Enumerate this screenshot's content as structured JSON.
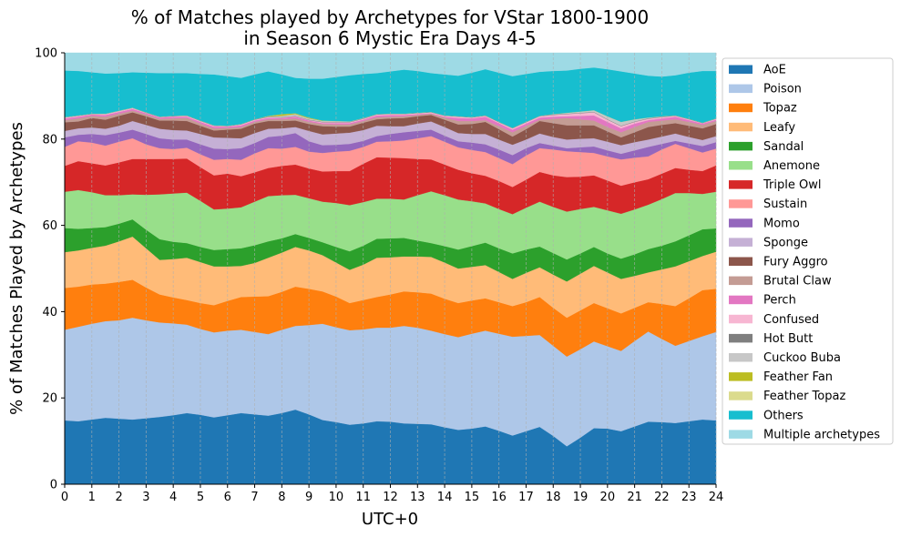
{
  "chart_data": {
    "type": "area",
    "stacked": true,
    "title_line1": "% of Matches played by Archetypes for VStar 1800-1900",
    "title_line2": "in Season 6 Mystic Era Days 4-5",
    "xlabel": "UTC+0",
    "ylabel": "% of Matches Played by Archetypes",
    "xlim": [
      0,
      24
    ],
    "ylim": [
      0,
      100
    ],
    "xticks": [
      0,
      1,
      2,
      3,
      4,
      5,
      6,
      7,
      8,
      9,
      10,
      11,
      12,
      13,
      14,
      15,
      16,
      17,
      18,
      19,
      20,
      21,
      22,
      23,
      24
    ],
    "yticks": [
      0,
      20,
      40,
      60,
      80,
      100
    ],
    "grid": "vertical-dashed",
    "legend_position": "right",
    "x": [
      0,
      0.5,
      1,
      1.5,
      2,
      2.5,
      3,
      3.5,
      4,
      4.5,
      5,
      5.5,
      6,
      6.5,
      7,
      7.5,
      8,
      8.5,
      9,
      9.5,
      10,
      10.5,
      11,
      11.5,
      12,
      12.5,
      13,
      13.5,
      14,
      14.5,
      15,
      15.5,
      16,
      16.5,
      17,
      17.5,
      18,
      18.5,
      19,
      19.5,
      20,
      20.5,
      21,
      21.5,
      22,
      22.5,
      23,
      23.5,
      24
    ],
    "cumulative_tops": [
      {
        "name": "AoE",
        "color": "#1f77b4",
        "values": [
          14.8,
          14.6,
          15.0,
          15.4,
          15.2,
          15.0,
          15.3,
          15.6,
          16.0,
          16.5,
          16.1,
          15.5,
          16.0,
          16.5,
          16.2,
          15.9,
          16.5,
          17.3,
          16.2,
          14.9,
          14.4,
          13.8,
          14.1,
          14.6,
          14.5,
          14.1,
          14.0,
          13.9,
          13.2,
          12.6,
          12.9,
          13.4,
          12.4,
          11.3,
          12.3,
          13.3,
          11.2,
          8.8,
          10.8,
          13.0,
          12.9,
          12.3,
          13.4,
          14.5,
          14.4,
          14.2,
          14.6,
          15.0,
          14.8
        ]
      },
      {
        "name": "Poison",
        "color": "#aec7e8",
        "values": [
          35.8,
          36.5,
          37.2,
          37.8,
          38.0,
          38.6,
          38.0,
          37.5,
          37.3,
          37.0,
          36.0,
          35.2,
          35.6,
          35.8,
          35.3,
          34.8,
          35.8,
          36.7,
          36.9,
          37.2,
          36.4,
          35.7,
          35.9,
          36.3,
          36.3,
          36.7,
          36.3,
          35.6,
          34.8,
          34.1,
          34.9,
          35.6,
          34.9,
          34.2,
          34.4,
          34.6,
          32.1,
          29.6,
          31.3,
          33.1,
          32.0,
          30.9,
          33.2,
          35.4,
          33.7,
          32.1,
          33.2,
          34.3,
          35.3
        ]
      },
      {
        "name": "Topaz",
        "color": "#ff7f0e",
        "values": [
          45.5,
          45.8,
          46.3,
          46.5,
          46.9,
          47.4,
          45.6,
          44.0,
          43.3,
          42.7,
          42.0,
          41.5,
          42.5,
          43.4,
          43.5,
          43.6,
          44.6,
          45.8,
          45.3,
          44.7,
          43.5,
          42.0,
          42.7,
          43.4,
          44.0,
          44.7,
          44.5,
          44.2,
          43.0,
          42.0,
          42.6,
          43.1,
          42.2,
          41.3,
          42.2,
          43.4,
          40.9,
          38.6,
          40.3,
          42.0,
          40.8,
          39.6,
          40.9,
          42.2,
          41.8,
          41.3,
          43.1,
          45.0,
          45.3
        ]
      },
      {
        "name": "Leafy",
        "color": "#ffbb78",
        "values": [
          53.8,
          54.2,
          54.8,
          55.3,
          56.3,
          57.4,
          54.7,
          52.0,
          52.2,
          52.5,
          51.5,
          50.5,
          50.5,
          50.6,
          51.3,
          52.5,
          53.7,
          55.0,
          54.2,
          53.1,
          51.4,
          49.7,
          50.9,
          52.5,
          52.6,
          52.8,
          52.8,
          52.7,
          51.4,
          50.0,
          50.4,
          50.8,
          49.2,
          47.6,
          49.0,
          50.3,
          48.6,
          47.0,
          48.8,
          50.6,
          49.1,
          47.6,
          48.3,
          49.1,
          49.8,
          50.5,
          51.7,
          52.9,
          53.9
        ]
      },
      {
        "name": "Sandal",
        "color": "#2ca02c",
        "values": [
          59.4,
          59.2,
          59.4,
          59.6,
          60.4,
          61.4,
          59.0,
          56.8,
          56.2,
          55.9,
          55.0,
          54.3,
          54.5,
          54.7,
          55.4,
          56.3,
          57.0,
          58.0,
          57.1,
          56.1,
          55.0,
          54.0,
          55.3,
          56.9,
          57.0,
          57.1,
          56.5,
          55.9,
          55.2,
          54.4,
          55.2,
          56.0,
          54.7,
          53.5,
          54.4,
          55.1,
          53.6,
          52.1,
          53.5,
          55.0,
          53.5,
          52.3,
          53.3,
          54.5,
          55.3,
          56.3,
          57.7,
          59.1,
          59.3
        ]
      },
      {
        "name": "Anemone",
        "color": "#98df8a",
        "values": [
          67.8,
          68.2,
          67.7,
          67.0,
          67.0,
          67.2,
          67.1,
          67.2,
          67.4,
          67.6,
          65.7,
          63.7,
          63.9,
          64.2,
          65.5,
          66.8,
          67.0,
          67.1,
          66.3,
          65.5,
          65.2,
          64.7,
          65.4,
          66.2,
          66.2,
          66.0,
          67.0,
          67.9,
          67.0,
          66.0,
          65.6,
          65.1,
          63.8,
          62.6,
          64.1,
          65.5,
          64.3,
          63.2,
          63.8,
          64.3,
          63.5,
          62.7,
          63.7,
          64.8,
          66.1,
          67.5,
          67.5,
          67.3,
          67.8
        ]
      },
      {
        "name": "Triple Owl",
        "color": "#d62728",
        "values": [
          73.8,
          74.9,
          74.4,
          73.9,
          74.6,
          75.4,
          75.4,
          75.4,
          75.4,
          75.5,
          73.5,
          71.6,
          72.0,
          71.4,
          72.3,
          73.3,
          73.8,
          74.1,
          73.2,
          72.5,
          72.6,
          72.6,
          74.3,
          75.8,
          75.7,
          75.6,
          75.4,
          75.3,
          74.1,
          72.9,
          72.1,
          71.5,
          70.3,
          68.9,
          70.6,
          72.4,
          71.6,
          71.2,
          71.3,
          71.6,
          70.4,
          69.2,
          70.0,
          70.7,
          72.0,
          73.3,
          72.9,
          72.6,
          73.9
        ]
      },
      {
        "name": "Sustain",
        "color": "#ff9896",
        "values": [
          78.2,
          79.5,
          79.2,
          78.5,
          79.4,
          80.2,
          78.8,
          77.9,
          77.7,
          78.0,
          76.5,
          75.2,
          75.4,
          75.2,
          76.7,
          77.9,
          77.8,
          78.2,
          77.1,
          76.8,
          77.1,
          77.3,
          78.2,
          79.4,
          79.5,
          79.7,
          80.2,
          80.7,
          79.4,
          78.1,
          77.5,
          77.0,
          75.6,
          74.2,
          76.2,
          77.9,
          77.6,
          77.2,
          77.0,
          76.8,
          76.0,
          75.3,
          75.7,
          76.0,
          77.6,
          78.9,
          77.9,
          76.9,
          77.8
        ]
      },
      {
        "name": "Momo",
        "color": "#9467bd",
        "values": [
          80.4,
          81.0,
          81.2,
          80.9,
          81.5,
          82.2,
          81.2,
          80.2,
          79.9,
          79.9,
          78.8,
          77.8,
          77.7,
          77.9,
          79.1,
          80.5,
          80.8,
          81.4,
          79.5,
          78.6,
          78.7,
          78.9,
          79.6,
          80.7,
          81.2,
          81.6,
          81.9,
          82.2,
          80.8,
          79.5,
          79.2,
          78.8,
          77.6,
          76.3,
          77.9,
          79.1,
          78.5,
          77.9,
          78.1,
          78.3,
          77.4,
          76.6,
          77.4,
          78.2,
          78.9,
          79.6,
          79.0,
          78.4,
          79.3
        ]
      },
      {
        "name": "Sponge",
        "color": "#c5b0d5",
        "values": [
          81.9,
          82.5,
          82.7,
          82.4,
          83.1,
          84.2,
          83.3,
          82.4,
          82.1,
          82.0,
          81.2,
          80.4,
          80.3,
          80.2,
          81.4,
          82.4,
          82.5,
          82.8,
          81.9,
          81.1,
          81.3,
          81.5,
          82.1,
          83.1,
          83.0,
          83.0,
          83.6,
          84.1,
          82.8,
          81.4,
          81.2,
          81.2,
          79.9,
          78.7,
          79.9,
          81.3,
          80.5,
          79.9,
          80.1,
          80.2,
          79.4,
          78.6,
          79.3,
          79.9,
          80.6,
          81.3,
          80.5,
          79.8,
          80.7
        ]
      },
      {
        "name": "Fury Aggro",
        "color": "#8c564b",
        "values": [
          83.9,
          84.1,
          84.9,
          84.5,
          85.4,
          86.2,
          85.3,
          84.3,
          84.3,
          84.2,
          83.1,
          82.0,
          82.2,
          82.4,
          83.6,
          84.2,
          84.2,
          84.3,
          83.5,
          83.0,
          82.9,
          82.9,
          83.8,
          84.6,
          84.8,
          84.9,
          85.3,
          85.6,
          84.5,
          83.4,
          83.5,
          84.0,
          82.3,
          80.6,
          82.3,
          84.2,
          83.7,
          83.2,
          83.2,
          83.2,
          81.8,
          80.4,
          81.6,
          82.8,
          83.3,
          83.7,
          83.1,
          82.5,
          83.5
        ]
      },
      {
        "name": "Brutal Claw",
        "color": "#c49c94",
        "values": [
          84.4,
          84.8,
          85.4,
          85.2,
          85.9,
          86.6,
          85.7,
          84.7,
          84.8,
          84.9,
          83.6,
          82.5,
          82.6,
          82.8,
          84.0,
          84.6,
          84.6,
          84.8,
          84.0,
          83.5,
          83.4,
          83.4,
          84.2,
          85.1,
          85.2,
          85.3,
          85.6,
          85.9,
          85.0,
          84.2,
          84.2,
          84.4,
          83.0,
          81.6,
          83.1,
          84.5,
          84.7,
          84.9,
          84.6,
          84.3,
          82.8,
          81.6,
          82.8,
          84.0,
          84.3,
          84.6,
          84.0,
          83.3,
          84.2
        ]
      },
      {
        "name": "Perch",
        "color": "#e377c2",
        "values": [
          84.8,
          85.2,
          85.7,
          85.6,
          86.3,
          87.0,
          86.0,
          85.0,
          85.2,
          85.2,
          84.0,
          82.9,
          82.9,
          83.2,
          84.3,
          84.9,
          84.9,
          85.2,
          84.3,
          83.7,
          83.7,
          83.7,
          84.5,
          85.5,
          85.6,
          85.6,
          85.8,
          86.0,
          85.2,
          84.9,
          84.8,
          85.2,
          83.7,
          82.2,
          83.6,
          85.0,
          85.2,
          85.3,
          85.4,
          85.5,
          84.0,
          82.5,
          83.6,
          84.4,
          84.8,
          85.2,
          84.4,
          83.6,
          84.5
        ]
      },
      {
        "name": "Confused",
        "color": "#f7b6d2",
        "values": [
          85.0,
          85.4,
          85.8,
          85.8,
          86.5,
          87.2,
          86.1,
          85.1,
          85.3,
          85.4,
          84.2,
          83.1,
          83.0,
          83.4,
          84.5,
          85.1,
          85.0,
          85.3,
          84.4,
          83.9,
          83.9,
          83.9,
          84.7,
          85.7,
          85.8,
          85.8,
          86.0,
          86.2,
          85.4,
          85.2,
          85.0,
          85.4,
          83.9,
          82.5,
          83.9,
          85.3,
          85.6,
          85.8,
          86.0,
          86.2,
          84.5,
          83.0,
          84.0,
          84.7,
          85.1,
          85.4,
          84.6,
          83.7,
          84.7
        ]
      },
      {
        "name": "Hot Butt",
        "color": "#7f7f7f",
        "values": [
          85.0,
          85.5,
          85.9,
          85.8,
          86.5,
          87.2,
          86.2,
          85.2,
          85.4,
          85.5,
          84.3,
          83.2,
          83.1,
          83.5,
          84.6,
          85.2,
          85.1,
          85.4,
          84.5,
          84.0,
          84.0,
          84.0,
          84.8,
          85.8,
          85.9,
          85.9,
          86.1,
          86.3,
          85.5,
          85.3,
          85.1,
          85.5,
          84.0,
          82.6,
          84.0,
          85.4,
          85.7,
          85.9,
          86.1,
          86.3,
          84.6,
          83.1,
          84.1,
          84.8,
          85.2,
          85.5,
          84.7,
          83.8,
          84.8
        ]
      },
      {
        "name": "Cuckoo Buba",
        "color": "#c7c7c7",
        "values": [
          85.1,
          85.5,
          85.9,
          85.9,
          86.6,
          87.3,
          86.2,
          85.2,
          85.4,
          85.5,
          84.3,
          83.2,
          83.1,
          83.5,
          84.6,
          85.3,
          85.4,
          85.8,
          84.8,
          84.2,
          84.2,
          84.1,
          84.9,
          85.8,
          85.9,
          85.9,
          86.1,
          86.3,
          85.5,
          85.3,
          85.1,
          85.5,
          84.0,
          82.6,
          84.0,
          85.4,
          85.8,
          86.1,
          86.4,
          86.7,
          85.3,
          84.0,
          84.6,
          85.0,
          85.3,
          85.5,
          84.7,
          83.8,
          84.8
        ]
      },
      {
        "name": "Feather Fan",
        "color": "#bcbd22",
        "values": [
          85.1,
          85.5,
          85.9,
          85.9,
          86.6,
          87.3,
          86.2,
          85.2,
          85.4,
          85.5,
          84.3,
          83.2,
          83.1,
          83.5,
          84.6,
          85.4,
          85.8,
          86.0,
          85.0,
          84.3,
          84.2,
          84.1,
          84.9,
          85.8,
          85.9,
          85.9,
          86.1,
          86.3,
          85.5,
          85.3,
          85.1,
          85.5,
          84.0,
          82.6,
          84.0,
          85.4,
          85.8,
          86.1,
          86.4,
          86.7,
          85.3,
          84.0,
          84.6,
          85.0,
          85.3,
          85.5,
          84.7,
          83.8,
          84.8
        ]
      },
      {
        "name": "Feather Topaz",
        "color": "#dbdb8d",
        "values": [
          85.1,
          85.5,
          85.9,
          85.9,
          86.6,
          87.3,
          86.2,
          85.2,
          85.4,
          85.5,
          84.3,
          83.2,
          83.1,
          83.5,
          84.6,
          85.4,
          85.8,
          86.0,
          85.0,
          84.3,
          84.2,
          84.1,
          84.9,
          85.8,
          85.9,
          85.9,
          86.1,
          86.3,
          85.5,
          85.3,
          85.1,
          85.5,
          84.0,
          82.6,
          84.0,
          85.4,
          85.8,
          86.1,
          86.4,
          86.7,
          85.3,
          84.0,
          84.6,
          85.0,
          85.3,
          85.5,
          84.7,
          83.8,
          84.8
        ]
      },
      {
        "name": "Others",
        "color": "#17becf",
        "values": [
          95.9,
          95.8,
          95.5,
          95.2,
          95.3,
          95.5,
          95.4,
          95.3,
          95.3,
          95.3,
          95.1,
          95.0,
          94.6,
          94.2,
          95.0,
          95.7,
          95.0,
          94.2,
          94.0,
          94.0,
          94.4,
          94.8,
          95.1,
          95.3,
          95.7,
          96.1,
          95.8,
          95.3,
          95.0,
          94.7,
          95.4,
          96.2,
          95.4,
          94.6,
          95.1,
          95.6,
          95.8,
          95.9,
          96.3,
          96.6,
          96.2,
          95.7,
          95.2,
          94.7,
          94.5,
          94.8,
          95.4,
          95.8,
          95.8
        ]
      },
      {
        "name": "Multiple archetypes",
        "color": "#9edae5",
        "values": [
          100,
          100,
          100,
          100,
          100,
          100,
          100,
          100,
          100,
          100,
          100,
          100,
          100,
          100,
          100,
          100,
          100,
          100,
          100,
          100,
          100,
          100,
          100,
          100,
          100,
          100,
          100,
          100,
          100,
          100,
          100,
          100,
          100,
          100,
          100,
          100,
          100,
          100,
          100,
          100,
          100,
          100,
          100,
          100,
          100,
          100,
          100,
          100,
          100
        ]
      }
    ]
  }
}
